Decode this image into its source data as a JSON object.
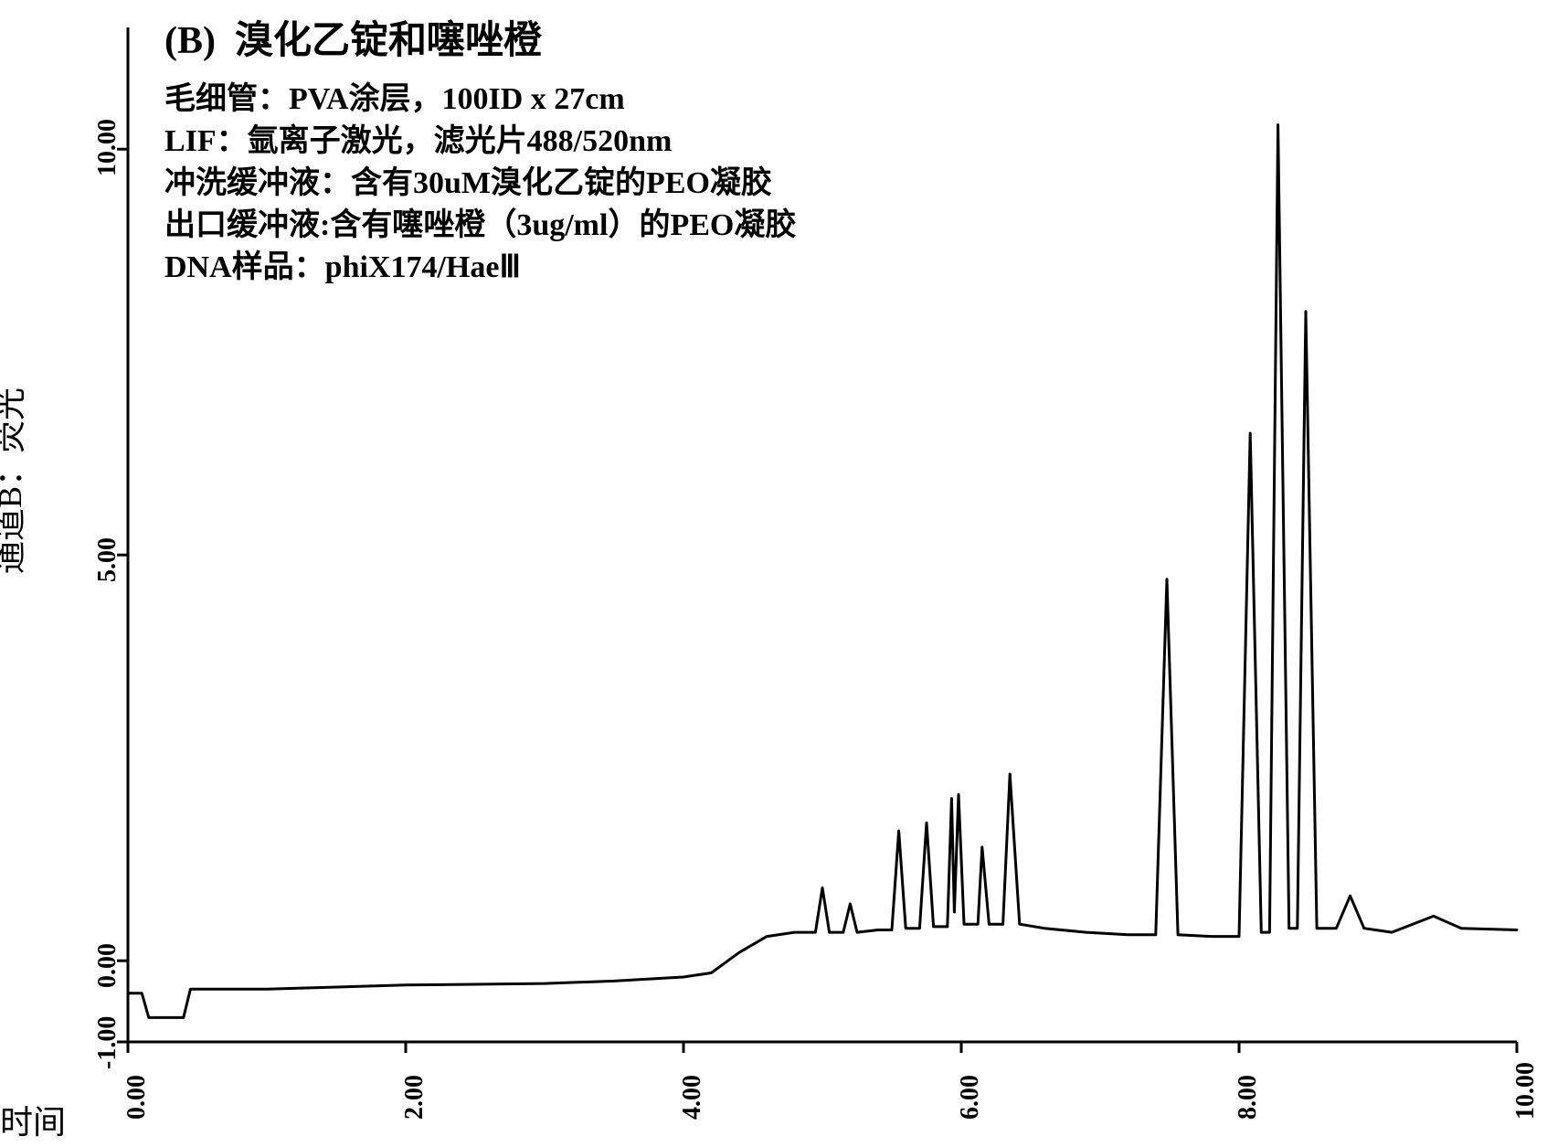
{
  "chart": {
    "type": "line",
    "panel_label": "(B)",
    "title": "溴化乙锭和噻唑橙",
    "params": [
      "毛细管：PVA涂层，100ID x 27cm",
      "LIF：氩离子激光，滤光片488/520nm",
      "冲洗缓冲液：含有30uM溴化乙锭的PEO凝胶",
      "出口缓冲液:含有噻唑橙（3ug/ml）的PEO凝胶",
      "DNA样品：phiX174/HaeⅢ"
    ],
    "y_axis": {
      "label": "通道B：荧光",
      "ticks": [
        -1.0,
        0.0,
        5.0,
        10.0
      ],
      "ylim": [
        -1.0,
        11.5
      ],
      "tick_fontsize": 28
    },
    "x_axis": {
      "label": "时间",
      "ticks": [
        0.0,
        2.0,
        4.0,
        6.0,
        8.0,
        10.0
      ],
      "xlim": [
        0.0,
        10.0
      ],
      "tick_fontsize": 28
    },
    "trace": {
      "color": "#000000",
      "width": 3,
      "points": [
        [
          0.0,
          -0.4
        ],
        [
          0.1,
          -0.4
        ],
        [
          0.15,
          -0.7
        ],
        [
          0.4,
          -0.7
        ],
        [
          0.45,
          -0.35
        ],
        [
          1.0,
          -0.35
        ],
        [
          2.0,
          -0.3
        ],
        [
          3.0,
          -0.28
        ],
        [
          3.5,
          -0.25
        ],
        [
          4.0,
          -0.2
        ],
        [
          4.2,
          -0.15
        ],
        [
          4.4,
          0.1
        ],
        [
          4.6,
          0.3
        ],
        [
          4.8,
          0.35
        ],
        [
          4.95,
          0.35
        ],
        [
          5.0,
          0.9
        ],
        [
          5.05,
          0.35
        ],
        [
          5.15,
          0.35
        ],
        [
          5.2,
          0.7
        ],
        [
          5.25,
          0.35
        ],
        [
          5.4,
          0.38
        ],
        [
          5.5,
          0.38
        ],
        [
          5.55,
          1.6
        ],
        [
          5.6,
          0.4
        ],
        [
          5.7,
          0.4
        ],
        [
          5.75,
          1.7
        ],
        [
          5.8,
          0.42
        ],
        [
          5.9,
          0.42
        ],
        [
          5.93,
          2.0
        ],
        [
          5.95,
          0.6
        ],
        [
          5.98,
          2.05
        ],
        [
          6.02,
          0.45
        ],
        [
          6.12,
          0.45
        ],
        [
          6.15,
          1.4
        ],
        [
          6.2,
          0.45
        ],
        [
          6.3,
          0.45
        ],
        [
          6.35,
          2.3
        ],
        [
          6.42,
          0.45
        ],
        [
          6.6,
          0.4
        ],
        [
          6.9,
          0.35
        ],
        [
          7.2,
          0.32
        ],
        [
          7.4,
          0.32
        ],
        [
          7.48,
          4.7
        ],
        [
          7.56,
          0.32
        ],
        [
          7.8,
          0.3
        ],
        [
          8.0,
          0.3
        ],
        [
          8.08,
          6.5
        ],
        [
          8.16,
          0.35
        ],
        [
          8.22,
          0.35
        ],
        [
          8.28,
          10.3
        ],
        [
          8.36,
          0.4
        ],
        [
          8.42,
          0.4
        ],
        [
          8.48,
          8.0
        ],
        [
          8.56,
          0.4
        ],
        [
          8.7,
          0.4
        ],
        [
          8.8,
          0.8
        ],
        [
          8.9,
          0.4
        ],
        [
          9.1,
          0.35
        ],
        [
          9.4,
          0.55
        ],
        [
          9.6,
          0.4
        ],
        [
          10.0,
          0.38
        ]
      ]
    },
    "background_color": "#ffffff",
    "axis_color": "#000000",
    "axis_width": 3,
    "tick_length": 12
  }
}
